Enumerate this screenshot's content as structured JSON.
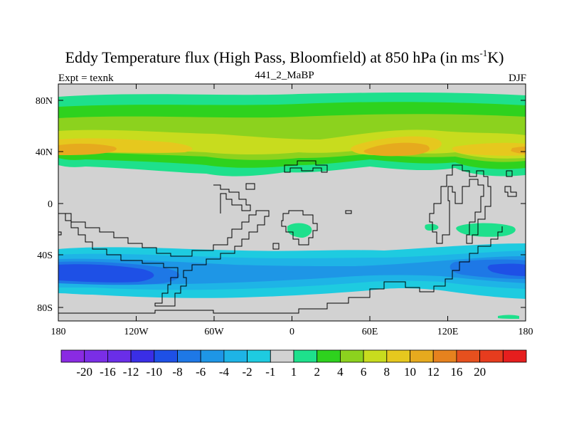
{
  "title": {
    "main_before": "Eddy Temperature flux (High Pass, Bloomfield) at 850 hPa (in ms",
    "superscript": "-1",
    "main_after": "K)"
  },
  "left_string": "Expt = texnk",
  "center_string": "441_2_MaBP",
  "right_string": "DJF",
  "x_ticks": [
    "180",
    "120W",
    "60W",
    "0",
    "60E",
    "120E",
    "180"
  ],
  "y_ticks": [
    "80N",
    "40N",
    "0",
    "40S",
    "80S"
  ],
  "colorbar": {
    "colors": [
      "#8a2be2",
      "#7a2ee6",
      "#6a2ee8",
      "#3a2ee6",
      "#1e50e6",
      "#1e78e6",
      "#1e96e6",
      "#1eb4e6",
      "#1ecbe0",
      "#d2d2d2",
      "#1ee08c",
      "#2ed21e",
      "#8cd21e",
      "#c8dc1e",
      "#e6c81e",
      "#e6aa1e",
      "#e6821e",
      "#e6501e",
      "#e63c1e",
      "#e61e1e"
    ],
    "labels": [
      "-20",
      "-16",
      "-12",
      "-10",
      "-8",
      "-6",
      "-4",
      "-2",
      "-1",
      "1",
      "2",
      "4",
      "6",
      "8",
      "10",
      "12",
      "16",
      "20"
    ]
  },
  "colors": {
    "missing": "#d2d2d2",
    "coastline": "#000000"
  }
}
